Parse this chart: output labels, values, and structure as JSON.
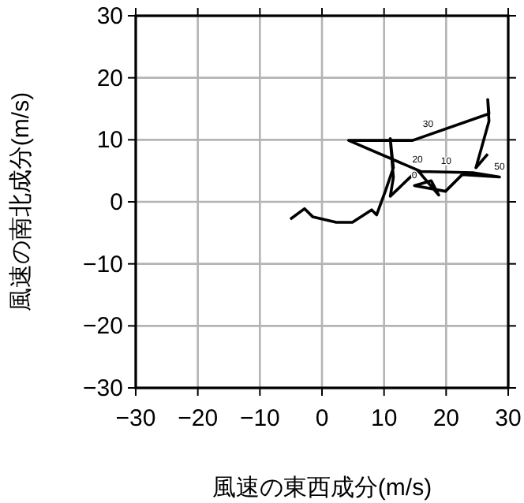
{
  "chart_data": {
    "type": "line",
    "xlabel": "風速の東西成分(m/s)",
    "ylabel": "風速の南北成分(m/s)",
    "x": [
      -5.1,
      -2.8,
      -1.5,
      2.3,
      4.9,
      8.0,
      8.8,
      10.2,
      11.5,
      11.0,
      11.5,
      11.0,
      15.4,
      18.8,
      17.6,
      14.9,
      19.9,
      22.6,
      28.6,
      24.3,
      15.9,
      4.3,
      14.6,
      26.9,
      26.7,
      26.9,
      24.8,
      26.7
    ],
    "series": [
      {
        "color": "#000000",
        "values": [
          -2.8,
          -1.1,
          -2.4,
          -3.3,
          -3.3,
          -1.3,
          -2.1,
          1.7,
          5.5,
          10.2,
          3.9,
          0.9,
          5.1,
          1.1,
          3.4,
          2.6,
          1.7,
          4.4,
          4.0,
          4.7,
          4.9,
          9.9,
          9.9,
          14.2,
          16.5,
          13.0,
          5.5,
          7.7
        ]
      }
    ],
    "annotations": [
      {
        "text": "30",
        "x": 17.1,
        "y": 10.8
      },
      {
        "text": "20",
        "x": 15.4,
        "y": 5.1
      },
      {
        "text": "10",
        "x": 20.0,
        "y": 4.8
      },
      {
        "text": "50",
        "x": 28.6,
        "y": 4.0
      },
      {
        "text": "0",
        "x": 14.9,
        "y": 2.6
      }
    ],
    "xlim": [
      -30,
      30
    ],
    "ylim": [
      -30,
      30
    ],
    "xticks": [
      {
        "value": -30,
        "label": "−30"
      },
      {
        "value": -20,
        "label": "−20"
      },
      {
        "value": -10,
        "label": "−10"
      },
      0,
      10,
      20,
      30
    ],
    "yticks": [
      {
        "value": -30,
        "label": "−30"
      },
      {
        "value": -20,
        "label": "−20"
      },
      {
        "value": -10,
        "label": "−10"
      },
      0,
      10,
      20,
      30
    ],
    "grid": true,
    "marker": "none",
    "line_style": "solid"
  }
}
